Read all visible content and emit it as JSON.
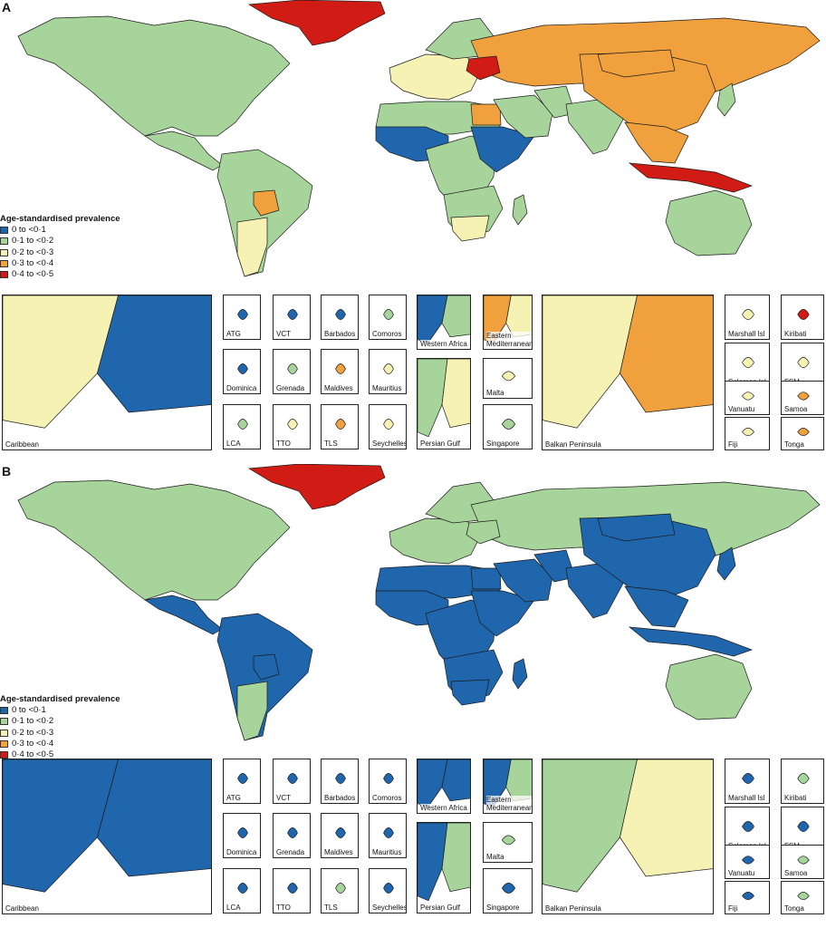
{
  "colors": {
    "c0": "#1f66ad",
    "c1": "#a6d49a",
    "c2": "#f6f2b4",
    "c3": "#f0a03c",
    "c4": "#d01c15",
    "border": "#1a1a1a",
    "water": "#ffffff"
  },
  "legend": {
    "title": "Age-standardised prevalence",
    "items": [
      {
        "label": "0 to <0·1",
        "color_key": "c0"
      },
      {
        "label": "0·1 to <0·2",
        "color_key": "c1"
      },
      {
        "label": "0·2 to <0·3",
        "color_key": "c2"
      },
      {
        "label": "0·3 to <0·4",
        "color_key": "c3"
      },
      {
        "label": "0·4 to <0·5",
        "color_key": "c4"
      }
    ]
  },
  "panels": [
    {
      "letter": "A",
      "regions": {
        "north_america": "c1",
        "greenland": "c4",
        "central_america": "c1",
        "south_america": "c1",
        "bolivia": "c3",
        "argentina": "c2",
        "europe_west": "c2",
        "scandinavia": "c1",
        "russia": "c3",
        "ukraine": "c4",
        "north_africa": "c1",
        "egypt": "c3",
        "west_africa": "c0",
        "central_africa": "c1",
        "east_africa": "c0",
        "southern_africa": "c1",
        "south_africa": "c2",
        "middle_east": "c1",
        "iran": "c1",
        "south_asia": "c1",
        "china": "c3",
        "mongolia": "c3",
        "southeast_asia": "c3",
        "indonesia": "c4",
        "australia": "c1",
        "japan": "c1",
        "madagascar": "c1"
      },
      "insets": [
        {
          "label": "Caribbean",
          "color_key": "c2",
          "color_key2": "c0"
        },
        {
          "label": "ATG",
          "color_key": "c0"
        },
        {
          "label": "VCT",
          "color_key": "c0"
        },
        {
          "label": "Barbados",
          "color_key": "c0"
        },
        {
          "label": "Comoros",
          "color_key": "c1"
        },
        {
          "label": "Dominica",
          "color_key": "c0"
        },
        {
          "label": "Grenada",
          "color_key": "c1"
        },
        {
          "label": "Maldives",
          "color_key": "c3"
        },
        {
          "label": "Mauritius",
          "color_key": "c2"
        },
        {
          "label": "LCA",
          "color_key": "c1"
        },
        {
          "label": "TTO",
          "color_key": "c2"
        },
        {
          "label": "TLS",
          "color_key": "c3"
        },
        {
          "label": "Seychelles",
          "color_key": "c2"
        },
        {
          "label": "Western Africa",
          "color_key": "c0",
          "color_key2": "c1"
        },
        {
          "label": "Eastern Mediterranean",
          "color_key": "c3",
          "color_key2": "c2"
        },
        {
          "label": "Persian Gulf",
          "color_key": "c1",
          "color_key2": "c2"
        },
        {
          "label": "Malta",
          "color_key": "c2"
        },
        {
          "label": "Singapore",
          "color_key": "c1"
        },
        {
          "label": "Balkan Peninsula",
          "color_key": "c2",
          "color_key2": "c3"
        },
        {
          "label": "Marshall Isl",
          "color_key": "c2"
        },
        {
          "label": "Kiribati",
          "color_key": "c4"
        },
        {
          "label": "Solomon Isl",
          "color_key": "c2"
        },
        {
          "label": "FSM",
          "color_key": "c2"
        },
        {
          "label": "Vanuatu",
          "color_key": "c2"
        },
        {
          "label": "Samoa",
          "color_key": "c3"
        },
        {
          "label": "Fiji",
          "color_key": "c2"
        },
        {
          "label": "Tonga",
          "color_key": "c3"
        }
      ]
    },
    {
      "letter": "B",
      "regions": {
        "north_america": "c1",
        "greenland": "c4",
        "central_america": "c0",
        "south_america": "c0",
        "bolivia": "c0",
        "argentina": "c1",
        "europe_west": "c1",
        "scandinavia": "c1",
        "russia": "c1",
        "ukraine": "c1",
        "north_africa": "c0",
        "egypt": "c0",
        "west_africa": "c0",
        "central_africa": "c0",
        "east_africa": "c0",
        "southern_africa": "c0",
        "south_africa": "c0",
        "middle_east": "c0",
        "iran": "c0",
        "south_asia": "c0",
        "china": "c0",
        "mongolia": "c0",
        "southeast_asia": "c0",
        "indonesia": "c0",
        "australia": "c1",
        "japan": "c0",
        "madagascar": "c0"
      },
      "insets": [
        {
          "label": "Caribbean",
          "color_key": "c0",
          "color_key2": "c0"
        },
        {
          "label": "ATG",
          "color_key": "c0"
        },
        {
          "label": "VCT",
          "color_key": "c0"
        },
        {
          "label": "Barbados",
          "color_key": "c0"
        },
        {
          "label": "Comoros",
          "color_key": "c0"
        },
        {
          "label": "Dominica",
          "color_key": "c0"
        },
        {
          "label": "Grenada",
          "color_key": "c0"
        },
        {
          "label": "Maldives",
          "color_key": "c0"
        },
        {
          "label": "Mauritius",
          "color_key": "c0"
        },
        {
          "label": "LCA",
          "color_key": "c0"
        },
        {
          "label": "TTO",
          "color_key": "c0"
        },
        {
          "label": "TLS",
          "color_key": "c1"
        },
        {
          "label": "Seychelles",
          "color_key": "c0"
        },
        {
          "label": "Western Africa",
          "color_key": "c0",
          "color_key2": "c0"
        },
        {
          "label": "Eastern Mediterranean",
          "color_key": "c0",
          "color_key2": "c1"
        },
        {
          "label": "Persian Gulf",
          "color_key": "c0",
          "color_key2": "c1"
        },
        {
          "label": "Malta",
          "color_key": "c1"
        },
        {
          "label": "Singapore",
          "color_key": "c0"
        },
        {
          "label": "Balkan Peninsula",
          "color_key": "c1",
          "color_key2": "c2"
        },
        {
          "label": "Marshall Isl",
          "color_key": "c0"
        },
        {
          "label": "Kiribati",
          "color_key": "c1"
        },
        {
          "label": "Solomon Isl",
          "color_key": "c0"
        },
        {
          "label": "FSM",
          "color_key": "c0"
        },
        {
          "label": "Vanuatu",
          "color_key": "c0"
        },
        {
          "label": "Samoa",
          "color_key": "c1"
        },
        {
          "label": "Fiji",
          "color_key": "c0"
        },
        {
          "label": "Tonga",
          "color_key": "c1"
        }
      ]
    }
  ]
}
